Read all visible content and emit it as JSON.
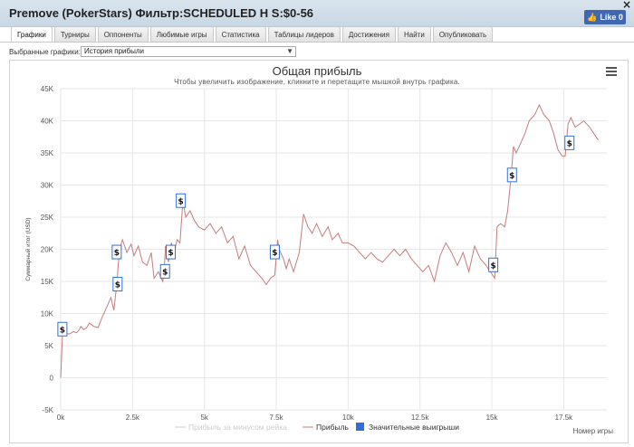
{
  "window": {
    "title": "Premove (PokerStars) Фильтр:SCHEDULED H S:$0-56",
    "close": "×",
    "like_button": "Like 0"
  },
  "tabs": [
    {
      "label": "Графики",
      "active": true
    },
    {
      "label": "Турниры"
    },
    {
      "label": "Оппоненты"
    },
    {
      "label": "Любимые игры"
    },
    {
      "label": "Статистика"
    },
    {
      "label": "Таблицы лидеров"
    },
    {
      "label": "Достижения"
    },
    {
      "label": "Найти"
    },
    {
      "label": "Опубликовать"
    }
  ],
  "selector": {
    "label": "Выбранные графики:",
    "value": "История прибыли"
  },
  "chart_data": {
    "type": "line",
    "title": "Общая прибыль",
    "subtitle": "Чтобы увеличить изображение, кликните и перетащите мышкой внутрь графика.",
    "ylabel": "Суммарный итог (USD)",
    "xlabel": "Номер игры",
    "y_ticks": [
      "45K",
      "40K",
      "35K",
      "30K",
      "25K",
      "20K",
      "15K",
      "10K",
      "5K",
      "0",
      "-5K"
    ],
    "x_ticks": [
      "0k",
      "2.5k",
      "5k",
      "7.5k",
      "10k",
      "12.5k",
      "15k",
      "17.5k"
    ],
    "ylim": [
      -5000,
      45000
    ],
    "xlim": [
      0,
      19000
    ],
    "grid": true,
    "legend_position": "bottom-center",
    "colors": {
      "profit": "#c47c7c",
      "rake": "#cccccc",
      "wins": "#2f6fd6"
    },
    "series": [
      {
        "name": "Прибыль за минусом рейка",
        "visible": false,
        "values": []
      },
      {
        "name": "Прибыль",
        "points": [
          [
            0,
            0
          ],
          [
            60,
            6500
          ],
          [
            150,
            7000
          ],
          [
            300,
            6800
          ],
          [
            450,
            7200
          ],
          [
            550,
            7000
          ],
          [
            650,
            7500
          ],
          [
            700,
            8000
          ],
          [
            800,
            7500
          ],
          [
            900,
            7800
          ],
          [
            1000,
            8500
          ],
          [
            1150,
            8000
          ],
          [
            1300,
            7800
          ],
          [
            1450,
            9500
          ],
          [
            1600,
            11000
          ],
          [
            1750,
            12500
          ],
          [
            1850,
            10500
          ],
          [
            1950,
            14500
          ],
          [
            2000,
            17500
          ],
          [
            2050,
            20000
          ],
          [
            2150,
            21500
          ],
          [
            2300,
            19500
          ],
          [
            2450,
            20800
          ],
          [
            2550,
            19000
          ],
          [
            2700,
            20500
          ],
          [
            2850,
            18000
          ],
          [
            3000,
            17500
          ],
          [
            3150,
            19500
          ],
          [
            3250,
            15500
          ],
          [
            3400,
            16500
          ],
          [
            3550,
            15000
          ],
          [
            3600,
            17000
          ],
          [
            3650,
            20500
          ],
          [
            3750,
            18000
          ],
          [
            3850,
            21000
          ],
          [
            3950,
            19500
          ],
          [
            4050,
            21500
          ],
          [
            4150,
            21000
          ],
          [
            4250,
            27500
          ],
          [
            4350,
            25000
          ],
          [
            4500,
            26000
          ],
          [
            4650,
            24500
          ],
          [
            4800,
            23500
          ],
          [
            5000,
            23000
          ],
          [
            5200,
            24000
          ],
          [
            5400,
            22500
          ],
          [
            5600,
            23500
          ],
          [
            5800,
            21000
          ],
          [
            6000,
            22000
          ],
          [
            6200,
            18500
          ],
          [
            6400,
            20500
          ],
          [
            6600,
            17500
          ],
          [
            6800,
            16500
          ],
          [
            7000,
            15500
          ],
          [
            7150,
            14500
          ],
          [
            7300,
            15500
          ],
          [
            7450,
            16000
          ],
          [
            7550,
            21500
          ],
          [
            7600,
            20000
          ],
          [
            7750,
            18500
          ],
          [
            7850,
            17000
          ],
          [
            7950,
            18500
          ],
          [
            8100,
            16500
          ],
          [
            8300,
            19500
          ],
          [
            8450,
            25500
          ],
          [
            8600,
            23500
          ],
          [
            8750,
            22500
          ],
          [
            8900,
            24000
          ],
          [
            9100,
            22000
          ],
          [
            9300,
            23500
          ],
          [
            9450,
            21500
          ],
          [
            9650,
            22500
          ],
          [
            9800,
            21000
          ],
          [
            10000,
            21000
          ],
          [
            10200,
            20500
          ],
          [
            10400,
            19500
          ],
          [
            10600,
            18500
          ],
          [
            10800,
            19500
          ],
          [
            11000,
            18500
          ],
          [
            11200,
            18000
          ],
          [
            11400,
            19000
          ],
          [
            11600,
            20000
          ],
          [
            11800,
            19000
          ],
          [
            12000,
            20000
          ],
          [
            12200,
            18500
          ],
          [
            12400,
            17500
          ],
          [
            12600,
            16500
          ],
          [
            12800,
            17500
          ],
          [
            13000,
            15000
          ],
          [
            13200,
            19000
          ],
          [
            13400,
            21000
          ],
          [
            13600,
            19500
          ],
          [
            13800,
            17500
          ],
          [
            14000,
            19500
          ],
          [
            14200,
            16500
          ],
          [
            14400,
            20500
          ],
          [
            14600,
            18500
          ],
          [
            14800,
            17500
          ],
          [
            14950,
            16500
          ],
          [
            15100,
            15500
          ],
          [
            15180,
            23500
          ],
          [
            15300,
            24000
          ],
          [
            15450,
            23500
          ],
          [
            15550,
            26000
          ],
          [
            15650,
            30500
          ],
          [
            15750,
            36000
          ],
          [
            15850,
            35000
          ],
          [
            16000,
            36500
          ],
          [
            16150,
            38000
          ],
          [
            16300,
            40000
          ],
          [
            16500,
            41000
          ],
          [
            16650,
            42500
          ],
          [
            16800,
            41000
          ],
          [
            17000,
            40000
          ],
          [
            17150,
            38000
          ],
          [
            17300,
            35500
          ],
          [
            17450,
            34500
          ],
          [
            17550,
            34500
          ],
          [
            17650,
            39500
          ],
          [
            17750,
            40500
          ],
          [
            17900,
            39000
          ],
          [
            18050,
            39500
          ],
          [
            18200,
            40000
          ],
          [
            18400,
            39000
          ],
          [
            18550,
            38000
          ],
          [
            18700,
            37000
          ]
        ]
      },
      {
        "name": "Значительные выигрыши",
        "marker": "$",
        "points": [
          [
            60,
            7500
          ],
          [
            1950,
            19500
          ],
          [
            1980,
            14500
          ],
          [
            3630,
            16500
          ],
          [
            3830,
            19500
          ],
          [
            4180,
            27500
          ],
          [
            7450,
            19500
          ],
          [
            15050,
            17500
          ],
          [
            15700,
            31500
          ],
          [
            17700,
            36500
          ]
        ]
      }
    ]
  }
}
